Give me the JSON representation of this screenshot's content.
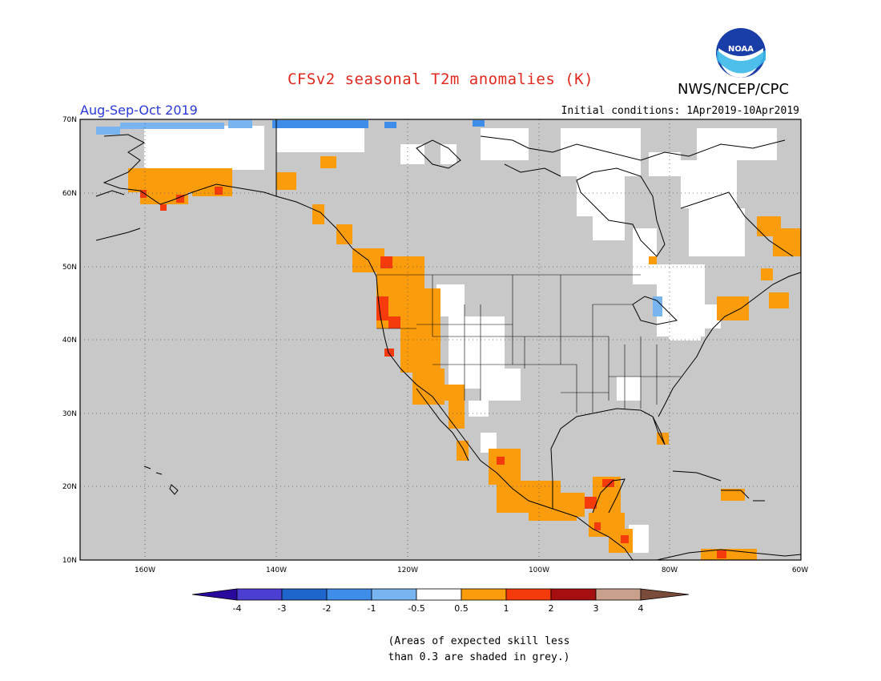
{
  "title": "CFSv2 seasonal T2m anomalies (K)",
  "agency": "NWS/NCEP/CPC",
  "logo_text": "NOAA",
  "period": "Aug-Sep-Oct 2019",
  "initial_conditions": "Initial conditions: 1Apr2019-10Apr2019",
  "map": {
    "lon_range": [
      -170,
      -60
    ],
    "lat_range": [
      10,
      70
    ],
    "lat_ticks": [
      "70N",
      "60N",
      "50N",
      "40N",
      "30N",
      "20N",
      "10N"
    ],
    "lon_ticks": [
      "160W",
      "140W",
      "120W",
      "100W",
      "80W",
      "60W"
    ],
    "grid": "dotted",
    "background_grey": "#c8c8c8"
  },
  "colorbar": {
    "tick_labels": [
      "-4",
      "-3",
      "-2",
      "-1",
      "-0.5",
      "0.5",
      "1",
      "2",
      "3",
      "4"
    ],
    "colors": [
      "#2a0a9c",
      "#4a3fd0",
      "#1f66cc",
      "#3e8de8",
      "#78b4f0",
      "#ffffff",
      "#fa9c0b",
      "#f53a0c",
      "#a50f0f",
      "#c8a08c",
      "#7a4a3a"
    ]
  },
  "regions": {
    "white": "anomaly between -0.5 and 0.5",
    "orange": "0.5 to 1",
    "red": "1 to 2",
    "light_blue": "-1 to -0.5"
  },
  "note_line1": "(Areas of expected skill less",
  "note_line2": "than 0.3 are shaded in grey.)"
}
